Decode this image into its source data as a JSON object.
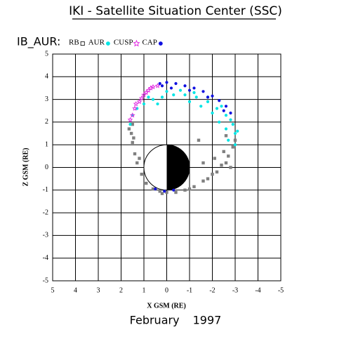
{
  "chart_data": {
    "type": "scatter",
    "title": "IKI - Satellite Situation Center (SSC)",
    "subtitle": "IB_AUR:",
    "xlabel": "X GSM (RE)",
    "ylabel": "Z GSM (RE)",
    "caption": "February 1997",
    "xlim": [
      5,
      -5
    ],
    "ylim": [
      -5,
      5
    ],
    "xticks": [
      5,
      4,
      3,
      2,
      1,
      0,
      -1,
      -2,
      -3,
      -4,
      -5
    ],
    "yticks": [
      5,
      4,
      3,
      2,
      1,
      0,
      -1,
      -2,
      -3,
      -4,
      -5
    ],
    "grid": true,
    "series": [
      {
        "name": "RB",
        "color": "#808080",
        "marker": "square",
        "x": [
          1.5,
          1.55,
          1.5,
          1.4,
          1.3,
          1.1,
          0.9,
          0.6,
          0.3,
          0,
          -0.4,
          -0.8,
          -1.2,
          -1.6,
          -2.0,
          -2.4,
          -2.7,
          -2.9,
          -3.0,
          -2.6,
          -2.2,
          -1.8,
          -2.8,
          -1.4,
          1.65,
          1.45,
          1.2,
          0.2,
          -1.0,
          -2.5,
          -1.6,
          -2.1,
          -2.6
        ],
        "values": [
          1.9,
          1.5,
          1.1,
          0.6,
          0.2,
          -0.3,
          -0.7,
          -0.95,
          -1.05,
          -1.1,
          -1.1,
          -1.0,
          -0.85,
          -0.6,
          -0.3,
          0.1,
          0.5,
          0.9,
          1.2,
          0.2,
          -0.2,
          -0.5,
          0.0,
          1.2,
          1.7,
          1.3,
          0.4,
          -1.15,
          -0.95,
          0.7,
          0.2,
          0.4,
          1.4
        ]
      },
      {
        "name": "AUR",
        "color": "#00e5e5",
        "marker": "circle",
        "x": [
          1.3,
          1.0,
          0.6,
          0.2,
          -0.3,
          -0.8,
          -1.3,
          -1.8,
          -2.2,
          -2.6,
          -2.9,
          -3.0,
          -3.0,
          0.8,
          0.0,
          -0.6,
          -1.2,
          -1.8,
          -2.4,
          -2.8,
          -1.0,
          -2.0,
          -2.6,
          1.5,
          1.6,
          0.4,
          -1.5,
          -2.7,
          -3.1,
          -2.3
        ],
        "values": [
          2.6,
          2.8,
          3.0,
          3.1,
          3.2,
          3.2,
          3.1,
          2.9,
          2.6,
          2.3,
          1.9,
          1.5,
          1.0,
          3.1,
          3.35,
          3.4,
          3.3,
          3.1,
          2.7,
          2.1,
          2.9,
          2.4,
          1.7,
          2.3,
          1.9,
          2.8,
          2.7,
          1.2,
          1.6,
          2.0
        ]
      },
      {
        "name": "CUSP",
        "color": "#e020e0",
        "marker": "star",
        "x": [
          1.5,
          1.4,
          1.2,
          1.0,
          0.8,
          0.6,
          0.4,
          1.35,
          1.1,
          0.9,
          1.6,
          0.7
        ],
        "values": [
          2.3,
          2.6,
          2.9,
          3.2,
          3.4,
          3.55,
          3.6,
          2.8,
          3.05,
          3.3,
          2.1,
          3.5
        ]
      },
      {
        "name": "CAP",
        "color": "#1010e0",
        "marker": "dot",
        "x": [
          0.3,
          0.0,
          -0.4,
          -0.8,
          -1.2,
          -1.6,
          -2.0,
          -2.3,
          -2.6,
          -2.8,
          -0.2,
          -1.0,
          -1.8,
          0.5,
          0.1,
          -0.3,
          -2.5,
          0.2
        ],
        "values": [
          3.7,
          3.75,
          3.7,
          3.6,
          3.5,
          3.35,
          3.15,
          2.95,
          2.7,
          2.4,
          3.5,
          3.4,
          3.1,
          -0.95,
          -1.05,
          -1.0,
          2.5,
          3.6
        ]
      }
    ]
  }
}
